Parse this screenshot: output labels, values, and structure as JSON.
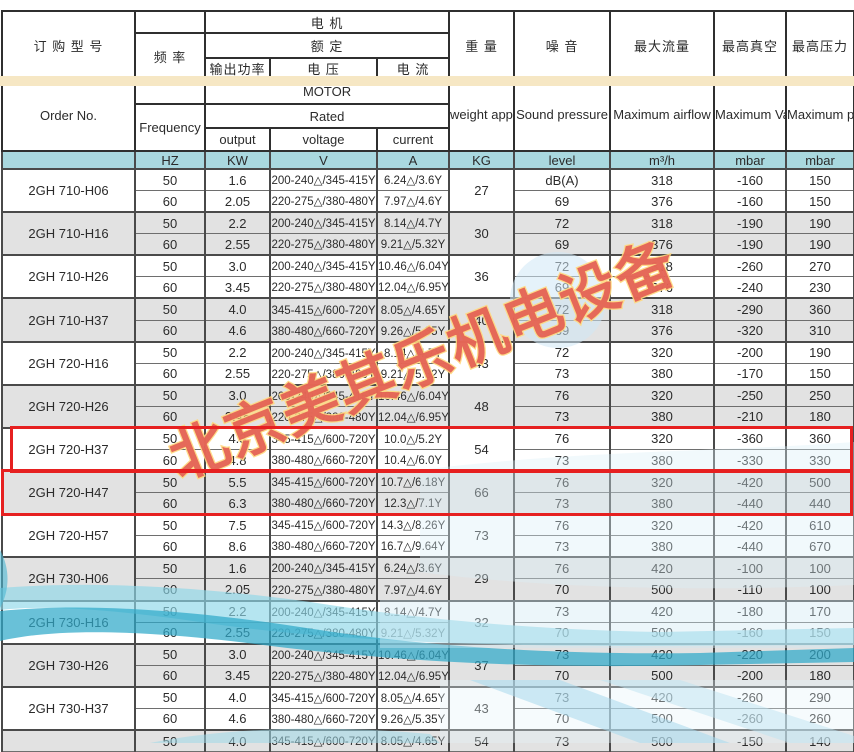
{
  "header": {
    "order_cn": "订 购 型 号",
    "order_en": "Order No.",
    "freq_cn": "频 率",
    "freq_en": "Frequency",
    "motor_cn": "电  机",
    "motor_en": "MOTOR",
    "rated_cn": "额 定",
    "rated_en": "Rated",
    "output_cn": "输出功率",
    "output_en": "output",
    "voltage_cn": "电 压",
    "voltage_en": "voltage",
    "current_cn": "电 流",
    "current_en": "current",
    "weight_cn": "重 量",
    "weight_en": "weight approx",
    "noise_cn": "噪 音",
    "noise_en": "Sound pressure",
    "airflow_cn": "最大流量",
    "airflow_en": "Maximum airflow",
    "vacuum_cn": "最高真空",
    "vacuum_en": "Maximum Vacuum",
    "pressure_cn": "最高压力",
    "pressure_en": "Maximum pressure"
  },
  "units": {
    "hz": "HZ",
    "kw": "KW",
    "v": "V",
    "a": "A",
    "kg": "KG",
    "level": "level",
    "m3h": "m³/h",
    "mbar_vac": "mbar",
    "mbar_pres": "mbar"
  },
  "models": [
    {
      "name": "2GH 710-H06",
      "weight": "27",
      "shaded": false,
      "highlighted": false,
      "rows": [
        {
          "hz": "50",
          "kw": "1.6",
          "v": "200-240△/345-415Y",
          "a": "6.24△/3.6Y",
          "sound": "dB(A)",
          "airflow": "318",
          "vacuum": "-160",
          "pressure": "150"
        },
        {
          "hz": "60",
          "kw": "2.05",
          "v": "220-275△/380-480Y",
          "a": "7.97△/4.6Y",
          "sound": "69",
          "airflow": "376",
          "vacuum": "-160",
          "pressure": "150"
        }
      ]
    },
    {
      "name": "2GH 710-H16",
      "weight": "30",
      "shaded": true,
      "highlighted": false,
      "rows": [
        {
          "hz": "50",
          "kw": "2.2",
          "v": "200-240△/345-415Y",
          "a": "8.14△/4.7Y",
          "sound": "72",
          "airflow": "318",
          "vacuum": "-190",
          "pressure": "190"
        },
        {
          "hz": "60",
          "kw": "2.55",
          "v": "220-275△/380-480Y",
          "a": "9.21△/5.32Y",
          "sound": "69",
          "airflow": "376",
          "vacuum": "-190",
          "pressure": "190"
        }
      ]
    },
    {
      "name": "2GH 710-H26",
      "weight": "36",
      "shaded": false,
      "highlighted": false,
      "rows": [
        {
          "hz": "50",
          "kw": "3.0",
          "v": "200-240△/345-415Y",
          "a": "10.46△/6.04Y",
          "sound": "72",
          "airflow": "318",
          "vacuum": "-260",
          "pressure": "270"
        },
        {
          "hz": "60",
          "kw": "3.45",
          "v": "220-275△/380-480Y",
          "a": "12.04△/6.95Y",
          "sound": "69",
          "airflow": "376",
          "vacuum": "-240",
          "pressure": "230"
        }
      ]
    },
    {
      "name": "2GH 710-H37",
      "weight": "40",
      "shaded": true,
      "highlighted": false,
      "rows": [
        {
          "hz": "50",
          "kw": "4.0",
          "v": "345-415△/600-720Y",
          "a": "8.05△/4.65Y",
          "sound": "72",
          "airflow": "318",
          "vacuum": "-290",
          "pressure": "360"
        },
        {
          "hz": "60",
          "kw": "4.6",
          "v": "380-480△/660-720Y",
          "a": "9.26△/5.35Y",
          "sound": "69",
          "airflow": "376",
          "vacuum": "-320",
          "pressure": "310"
        }
      ]
    },
    {
      "name": "2GH 720-H16",
      "weight": "43",
      "shaded": false,
      "highlighted": false,
      "rows": [
        {
          "hz": "50",
          "kw": "2.2",
          "v": "200-240△/345-415Y",
          "a": "8.14△/4.7Y",
          "sound": "72",
          "airflow": "320",
          "vacuum": "-200",
          "pressure": "190"
        },
        {
          "hz": "60",
          "kw": "2.55",
          "v": "220-275△/380-480Y",
          "a": "9.21△/5.32Y",
          "sound": "73",
          "airflow": "380",
          "vacuum": "-170",
          "pressure": "150"
        }
      ]
    },
    {
      "name": "2GH 720-H26",
      "weight": "48",
      "shaded": true,
      "highlighted": false,
      "rows": [
        {
          "hz": "50",
          "kw": "3.0",
          "v": "200-240△/345-415Y",
          "a": "10.46△/6.04Y",
          "sound": "76",
          "airflow": "320",
          "vacuum": "-250",
          "pressure": "250"
        },
        {
          "hz": "60",
          "kw": "3.45",
          "v": "220-275△/380-480Y",
          "a": "12.04△/6.95Y",
          "sound": "73",
          "airflow": "380",
          "vacuum": "-210",
          "pressure": "180"
        }
      ]
    },
    {
      "name": "2GH 720-H37",
      "weight": "54",
      "shaded": false,
      "highlighted": true,
      "rows": [
        {
          "hz": "50",
          "kw": "4.3",
          "v": "345-415△/600-720Y",
          "a": "10.0△/5.2Y",
          "sound": "76",
          "airflow": "320",
          "vacuum": "-360",
          "pressure": "360"
        },
        {
          "hz": "60",
          "kw": "4.8",
          "v": "380-480△/660-720Y",
          "a": "10.4△/6.0Y",
          "sound": "73",
          "airflow": "380",
          "vacuum": "-330",
          "pressure": "330"
        }
      ]
    },
    {
      "name": "2GH 720-H47",
      "weight": "66",
      "shaded": true,
      "highlighted": true,
      "rows": [
        {
          "hz": "50",
          "kw": "5.5",
          "v": "345-415△/600-720Y",
          "a": "10.7△/6.18Y",
          "sound": "76",
          "airflow": "320",
          "vacuum": "-420",
          "pressure": "500"
        },
        {
          "hz": "60",
          "kw": "6.3",
          "v": "380-480△/660-720Y",
          "a": "12.3△/7.1Y",
          "sound": "73",
          "airflow": "380",
          "vacuum": "-440",
          "pressure": "440"
        }
      ]
    },
    {
      "name": "2GH 720-H57",
      "weight": "73",
      "shaded": false,
      "highlighted": false,
      "rows": [
        {
          "hz": "50",
          "kw": "7.5",
          "v": "345-415△/600-720Y",
          "a": "14.3△/8.26Y",
          "sound": "76",
          "airflow": "320",
          "vacuum": "-420",
          "pressure": "610"
        },
        {
          "hz": "60",
          "kw": "8.6",
          "v": "380-480△/660-720Y",
          "a": "16.7△/9.64Y",
          "sound": "73",
          "airflow": "380",
          "vacuum": "-440",
          "pressure": "670"
        }
      ]
    },
    {
      "name": "2GH 730-H06",
      "weight": "29",
      "shaded": true,
      "highlighted": false,
      "rows": [
        {
          "hz": "50",
          "kw": "1.6",
          "v": "200-240△/345-415Y",
          "a": "6.24△/3.6Y",
          "sound": "76",
          "airflow": "420",
          "vacuum": "-100",
          "pressure": "100"
        },
        {
          "hz": "60",
          "kw": "2.05",
          "v": "220-275△/380-480Y",
          "a": "7.97△/4.6Y",
          "sound": "70",
          "airflow": "500",
          "vacuum": "-110",
          "pressure": "100"
        }
      ]
    },
    {
      "name": "2GH 730-H16",
      "weight": "32",
      "shaded": false,
      "highlighted": false,
      "rows": [
        {
          "hz": "50",
          "kw": "2.2",
          "v": "200-240△/345-415Y",
          "a": "8.14△/4.7Y",
          "sound": "73",
          "airflow": "420",
          "vacuum": "-180",
          "pressure": "170"
        },
        {
          "hz": "60",
          "kw": "2.55",
          "v": "220-275△/380-480Y",
          "a": "9.21△/5.32Y",
          "sound": "70",
          "airflow": "500",
          "vacuum": "-160",
          "pressure": "150"
        }
      ]
    },
    {
      "name": "2GH 730-H26",
      "weight": "37",
      "shaded": true,
      "highlighted": false,
      "rows": [
        {
          "hz": "50",
          "kw": "3.0",
          "v": "200-240△/345-415Y",
          "a": "10.46△/6.04Y",
          "sound": "73",
          "airflow": "420",
          "vacuum": "-220",
          "pressure": "200"
        },
        {
          "hz": "60",
          "kw": "3.45",
          "v": "220-275△/380-480Y",
          "a": "12.04△/6.95Y",
          "sound": "70",
          "airflow": "500",
          "vacuum": "-200",
          "pressure": "180"
        }
      ]
    },
    {
      "name": "2GH 730-H37",
      "weight": "43",
      "shaded": false,
      "highlighted": false,
      "rows": [
        {
          "hz": "50",
          "kw": "4.0",
          "v": "345-415△/600-720Y",
          "a": "8.05△/4.65Y",
          "sound": "73",
          "airflow": "420",
          "vacuum": "-260",
          "pressure": "290"
        },
        {
          "hz": "60",
          "kw": "4.6",
          "v": "380-480△/660-720Y",
          "a": "9.26△/5.35Y",
          "sound": "70",
          "airflow": "500",
          "vacuum": "-260",
          "pressure": "260"
        }
      ]
    },
    {
      "name": "",
      "weight": "54",
      "shaded": true,
      "highlighted": false,
      "rows": [
        {
          "hz": "50",
          "kw": "4.0",
          "v": "345-415△/600-720Y",
          "a": "8.05△/4.65Y",
          "sound": "73",
          "airflow": "500",
          "vacuum": "-150",
          "pressure": "140"
        }
      ]
    }
  ],
  "watermark": {
    "text": "北京美其乐机电设备"
  },
  "colors": {
    "row_shade": "#e2e2e2",
    "units_bg": "#a9d8df",
    "band": "#f6e7c4",
    "border": "#4a4a4a",
    "highlight": "#e62020",
    "wave_dark": "#2fa9c9",
    "wave_light": "#8ed7e8",
    "watermark_fill": "#e15550",
    "watermark_outline": "#ffd87d"
  }
}
